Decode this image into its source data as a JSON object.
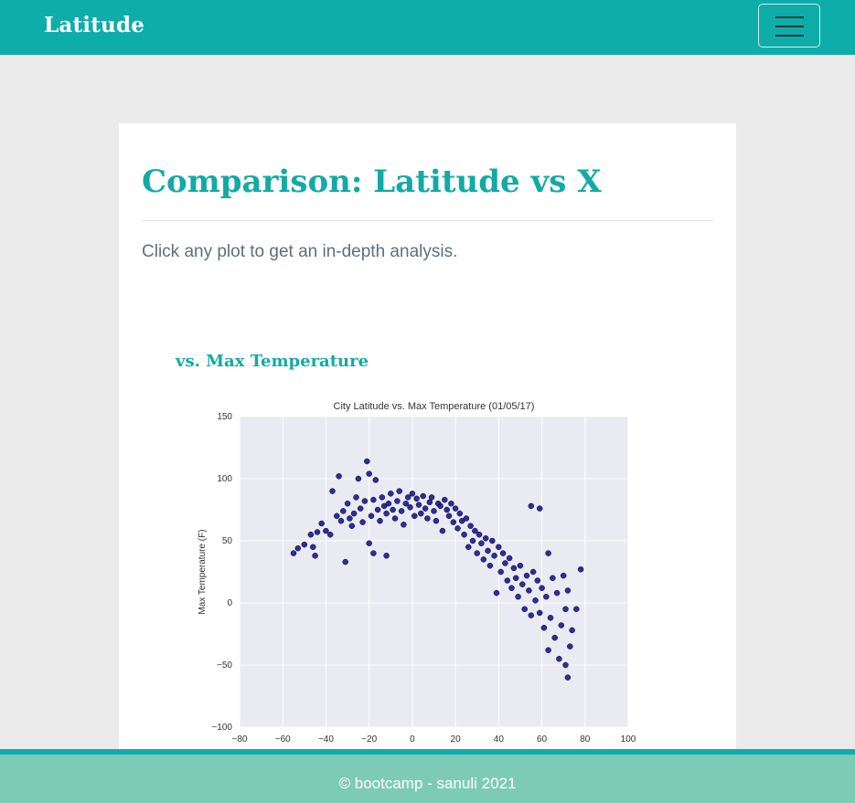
{
  "navbar": {
    "brand": "Latitude",
    "menu_icon": "hamburger-icon"
  },
  "page": {
    "title": "Comparison: Latitude vs X",
    "subtitle": "Click any plot to get an in-depth analysis.",
    "plot_heading": "vs. Max Temperature"
  },
  "footer": {
    "text": "© bootcamp - sanuli 2021"
  },
  "colors": {
    "brand": "#0fadaa",
    "footer": "#7ecbb5",
    "point_fill": "#1a1a8c",
    "plot_bg": "#eaeaf2"
  },
  "chart_data": {
    "type": "scatter",
    "title": "City Latitude vs. Max Temperature (01/05/17)",
    "xlabel": "",
    "ylabel": "Max Temperature (F)",
    "xlim": [
      -80,
      100
    ],
    "ylim": [
      -100,
      150
    ],
    "xticks": [
      -80,
      -60,
      -40,
      -20,
      0,
      20,
      40,
      60,
      80,
      100
    ],
    "yticks": [
      -100,
      -50,
      0,
      50,
      100,
      150
    ],
    "grid": true,
    "series": [
      {
        "points": [
          [
            -55,
            40
          ],
          [
            -53,
            44
          ],
          [
            -50,
            47
          ],
          [
            -47,
            55
          ],
          [
            -46,
            45
          ],
          [
            -45,
            38
          ],
          [
            -44,
            57
          ],
          [
            -42,
            64
          ],
          [
            -40,
            58
          ],
          [
            -38,
            55
          ],
          [
            -37,
            90
          ],
          [
            -35,
            70
          ],
          [
            -34,
            102
          ],
          [
            -33,
            66
          ],
          [
            -32,
            74
          ],
          [
            -31,
            33
          ],
          [
            -30,
            80
          ],
          [
            -29,
            68
          ],
          [
            -28,
            62
          ],
          [
            -27,
            72
          ],
          [
            -26,
            85
          ],
          [
            -25,
            100
          ],
          [
            -24,
            76
          ],
          [
            -23,
            65
          ],
          [
            -22,
            82
          ],
          [
            -21,
            114
          ],
          [
            -20,
            104
          ],
          [
            -20,
            48
          ],
          [
            -19,
            70
          ],
          [
            -18,
            83
          ],
          [
            -18,
            40
          ],
          [
            -17,
            99
          ],
          [
            -16,
            75
          ],
          [
            -15,
            66
          ],
          [
            -14,
            85
          ],
          [
            -13,
            78
          ],
          [
            -12,
            38
          ],
          [
            -12,
            72
          ],
          [
            -11,
            80
          ],
          [
            -10,
            88
          ],
          [
            -9,
            75
          ],
          [
            -8,
            68
          ],
          [
            -7,
            82
          ],
          [
            -6,
            90
          ],
          [
            -5,
            74
          ],
          [
            -4,
            63
          ],
          [
            -3,
            80
          ],
          [
            -2,
            85
          ],
          [
            -1,
            77
          ],
          [
            0,
            88
          ],
          [
            1,
            70
          ],
          [
            2,
            84
          ],
          [
            3,
            79
          ],
          [
            4,
            72
          ],
          [
            5,
            86
          ],
          [
            6,
            76
          ],
          [
            7,
            68
          ],
          [
            8,
            81
          ],
          [
            9,
            85
          ],
          [
            10,
            74
          ],
          [
            11,
            66
          ],
          [
            12,
            80
          ],
          [
            13,
            78
          ],
          [
            14,
            58
          ],
          [
            15,
            83
          ],
          [
            16,
            75
          ],
          [
            17,
            70
          ],
          [
            18,
            80
          ],
          [
            19,
            65
          ],
          [
            20,
            76
          ],
          [
            21,
            60
          ],
          [
            22,
            72
          ],
          [
            23,
            66
          ],
          [
            24,
            55
          ],
          [
            25,
            68
          ],
          [
            26,
            45
          ],
          [
            27,
            62
          ],
          [
            28,
            50
          ],
          [
            29,
            58
          ],
          [
            30,
            40
          ],
          [
            31,
            55
          ],
          [
            32,
            48
          ],
          [
            33,
            35
          ],
          [
            34,
            52
          ],
          [
            35,
            42
          ],
          [
            36,
            30
          ],
          [
            37,
            50
          ],
          [
            38,
            38
          ],
          [
            39,
            8
          ],
          [
            40,
            45
          ],
          [
            41,
            25
          ],
          [
            42,
            40
          ],
          [
            43,
            32
          ],
          [
            44,
            18
          ],
          [
            45,
            36
          ],
          [
            46,
            12
          ],
          [
            47,
            28
          ],
          [
            48,
            20
          ],
          [
            49,
            5
          ],
          [
            50,
            30
          ],
          [
            51,
            15
          ],
          [
            52,
            -5
          ],
          [
            53,
            22
          ],
          [
            54,
            10
          ],
          [
            55,
            78
          ],
          [
            55,
            -10
          ],
          [
            56,
            25
          ],
          [
            57,
            2
          ],
          [
            58,
            18
          ],
          [
            59,
            76
          ],
          [
            59,
            -8
          ],
          [
            60,
            12
          ],
          [
            61,
            -20
          ],
          [
            62,
            5
          ],
          [
            63,
            -38
          ],
          [
            63,
            40
          ],
          [
            64,
            -12
          ],
          [
            65,
            20
          ],
          [
            66,
            -28
          ],
          [
            67,
            8
          ],
          [
            68,
            -45
          ],
          [
            69,
            -18
          ],
          [
            70,
            22
          ],
          [
            71,
            -50
          ],
          [
            71,
            -5
          ],
          [
            72,
            -60
          ],
          [
            72,
            10
          ],
          [
            73,
            -35
          ],
          [
            74,
            -22
          ],
          [
            76,
            -5
          ],
          [
            78,
            27
          ]
        ]
      }
    ]
  }
}
